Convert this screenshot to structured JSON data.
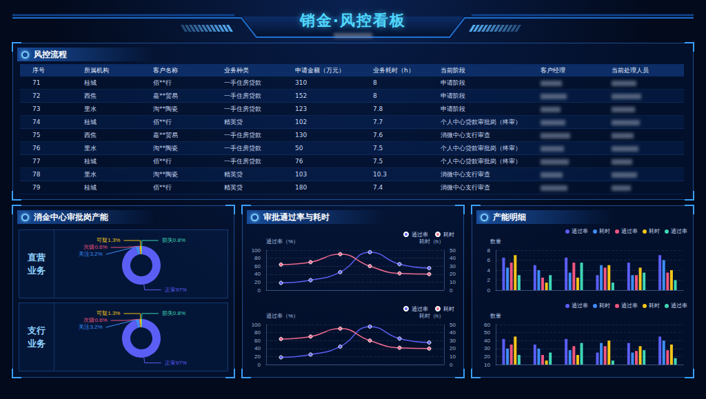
{
  "header": {
    "title": "销金·风控看板"
  },
  "table": {
    "title": "风控流程",
    "columns": [
      "序号",
      "所属机构",
      "客户名称",
      "业务种类",
      "申请金额（万元）",
      "业务耗时（h）",
      "当前阶段",
      "客户经理",
      "当前处理人员"
    ],
    "rows": [
      [
        71,
        "桂城",
        "佰**行",
        "一手住房贷款",
        310,
        8,
        "申请阶段",
        null,
        null
      ],
      [
        72,
        "西焦",
        "嘉**贸易",
        "一手住房贷款",
        152,
        8,
        "申请阶段",
        null,
        null
      ],
      [
        73,
        "里水",
        "淘**陶瓷",
        "一手住房贷款",
        123,
        7.8,
        "申请阶段",
        null,
        null
      ],
      [
        74,
        "桂城",
        "佰**行",
        "精英贷",
        102,
        7.7,
        "个人中心贷款审批岗（终审）",
        null,
        null
      ],
      [
        75,
        "西焦",
        "嘉**贸易",
        "一手住房贷款",
        130,
        7.6,
        "消微中心支行审查",
        null,
        null
      ],
      [
        76,
        "里水",
        "淘**陶瓷",
        "一手住房贷款",
        50,
        7.5,
        "个人中心贷款审批岗（终审）",
        null,
        null
      ],
      [
        77,
        "桂城",
        "佰**行",
        "一手住房贷款",
        76,
        7.5,
        "个人中心贷款审批岗（终审）",
        null,
        null
      ],
      [
        78,
        "里水",
        "淘**陶瓷",
        "精英贷",
        103,
        10.3,
        "消微中心支行审查",
        null,
        null
      ],
      [
        79,
        "桂城",
        "佰**行",
        "精英贷",
        180,
        7.4,
        "消微中心支行审查",
        null,
        null
      ]
    ]
  },
  "panel_titles": [
    "消金中心审批岗产能",
    "审批通过率与耗时",
    "产能明细"
  ],
  "chart_data": [
    {
      "type": "pie",
      "title": "直营业务",
      "categories": [
        "关注",
        "次级",
        "可疑",
        "损失",
        "正常"
      ],
      "values": [
        3.2,
        0.6,
        1.3,
        0.8,
        97
      ],
      "value_labels": [
        "关注3.2%",
        "次级0.6%",
        "可疑1.3%",
        "损失0.8%",
        "正常97%"
      ],
      "colors": [
        "#3e8ef7",
        "#f0557f",
        "#f5c518",
        "#3ed6b5",
        "#5b5ef5"
      ],
      "data_labels": true
    },
    {
      "type": "pie",
      "title": "支行业务",
      "categories": [
        "关注",
        "次级",
        "可疑",
        "损失",
        "正常"
      ],
      "values": [
        3.2,
        0.6,
        1.3,
        0.8,
        97
      ],
      "value_labels": [
        "关注3.2%",
        "次级0.6%",
        "可疑1.3%",
        "损失0.8%",
        "正常97%"
      ],
      "colors": [
        "#3e8ef7",
        "#f0557f",
        "#f5c518",
        "#3ed6b5",
        "#5b5ef5"
      ],
      "data_labels": true
    },
    {
      "type": "line",
      "categories": [
        null,
        null,
        null,
        null,
        null,
        null
      ],
      "ylabel": "通过率（%）",
      "y2label": "耗时（h）",
      "ylim": [
        0,
        100
      ],
      "yticks": [
        0,
        20,
        40,
        60,
        80,
        100
      ],
      "y2lim": [
        0,
        50
      ],
      "y2ticks": [
        0,
        10,
        20,
        30,
        40,
        50
      ],
      "grid": true,
      "legend": "top-right",
      "marker": "circle",
      "line_style": "smooth",
      "series": [
        {
          "name": "通过率",
          "color": "#5b5ef5",
          "values": [
            18,
            25,
            45,
            95,
            65,
            55
          ]
        },
        {
          "name": "耗时",
          "color": "#f06a8e",
          "axis": "y2",
          "values": [
            32,
            35,
            45,
            30,
            21,
            20
          ]
        }
      ]
    },
    {
      "type": "line",
      "categories": [
        null,
        null,
        null,
        null,
        null,
        null
      ],
      "ylabel": "通过率（%）",
      "y2label": "耗时（h）",
      "ylim": [
        0,
        100
      ],
      "yticks": [
        0,
        20,
        40,
        60,
        80,
        100
      ],
      "y2lim": [
        0,
        50
      ],
      "y2ticks": [
        0,
        10,
        20,
        30,
        40,
        50
      ],
      "grid": true,
      "legend": "top-right",
      "marker": "circle",
      "line_style": "smooth",
      "series": [
        {
          "name": "通过率",
          "color": "#5b5ef5",
          "values": [
            18,
            25,
            45,
            95,
            65,
            55
          ]
        },
        {
          "name": "耗时",
          "color": "#f06a8e",
          "axis": "y2",
          "values": [
            32,
            35,
            45,
            30,
            21,
            20
          ]
        }
      ]
    },
    {
      "type": "bar",
      "categories": [
        null,
        null,
        null,
        null,
        null,
        null
      ],
      "ylabel": "数量",
      "ylim": [
        0,
        8
      ],
      "yticks": [
        0,
        2,
        4,
        6,
        8
      ],
      "grid": true,
      "legend": "top-right",
      "series": [
        {
          "name": "通过率",
          "color": "#5b5ef5",
          "values": [
            6.5,
            5,
            6.5,
            3,
            5.5,
            7
          ]
        },
        {
          "name": "耗时",
          "color": "#3e8ef7",
          "values": [
            4.5,
            4,
            3.5,
            5,
            3,
            6
          ]
        },
        {
          "name": "通过率",
          "color": "#f0557f",
          "values": [
            5.5,
            2.5,
            5.5,
            4.5,
            3,
            3.5
          ]
        },
        {
          "name": "耗时",
          "color": "#f5c518",
          "values": [
            7,
            1.5,
            2.5,
            5,
            4.5,
            4
          ]
        },
        {
          "name": "通过率",
          "color": "#3ed6b5",
          "values": [
            3,
            3,
            5.5,
            1.5,
            3.5,
            2
          ]
        }
      ]
    },
    {
      "type": "bar",
      "categories": [
        null,
        null,
        null,
        null,
        null,
        null
      ],
      "ylabel": "数量",
      "ylim": [
        10,
        60
      ],
      "yticks": [
        10,
        20,
        30,
        40,
        50,
        60
      ],
      "grid": true,
      "legend": "top-right",
      "series": [
        {
          "name": "通过率",
          "color": "#5b5ef5",
          "values": [
            42,
            35,
            42,
            25,
            37,
            45
          ]
        },
        {
          "name": "耗时",
          "color": "#3e8ef7",
          "values": [
            30,
            30,
            28,
            37,
            25,
            40
          ]
        },
        {
          "name": "通过率",
          "color": "#f0557f",
          "values": [
            35,
            22,
            33,
            33,
            27,
            28
          ]
        },
        {
          "name": "耗时",
          "color": "#f5c518",
          "values": [
            45,
            15,
            22,
            40,
            33,
            35
          ]
        },
        {
          "name": "通过率",
          "color": "#3ed6b5",
          "values": [
            22,
            25,
            37,
            15,
            28,
            18
          ]
        }
      ]
    }
  ]
}
